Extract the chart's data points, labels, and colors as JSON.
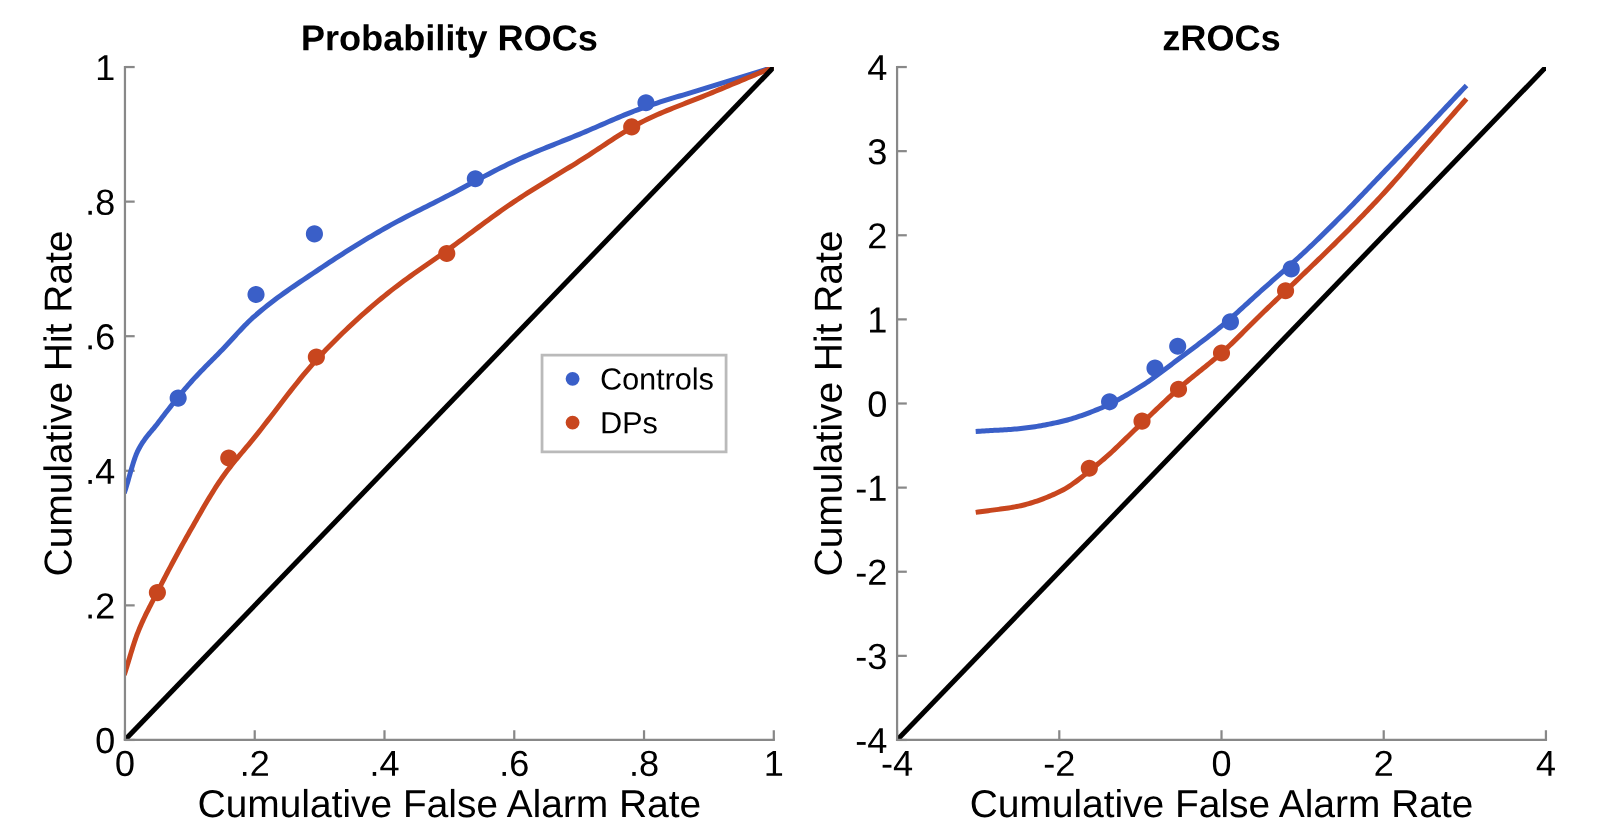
{
  "chart_data": [
    {
      "type": "scatter",
      "title": "Probability ROCs",
      "xlabel": "Cumulative False Alarm Rate",
      "ylabel": "Cumulative Hit Rate",
      "xlim": [
        0,
        1
      ],
      "ylim": [
        0,
        1
      ],
      "xticks": [
        0,
        {
          "value": 0.2,
          "label": ".2"
        },
        {
          "value": 0.4,
          "label": ".4"
        },
        {
          "value": 0.6,
          "label": ".6"
        },
        {
          "value": 0.8,
          "label": ".8"
        },
        1
      ],
      "yticks": [
        0,
        {
          "value": 0.2,
          "label": ".2"
        },
        {
          "value": 0.4,
          "label": ".4"
        },
        {
          "value": 0.6,
          "label": ".6"
        },
        {
          "value": 0.8,
          "label": ".8"
        },
        1
      ],
      "grid": false,
      "legend": "right",
      "series": [
        {
          "name": "Controls",
          "color": "#3a5fc8",
          "marker": "circle",
          "x": [
            0.082,
            0.202,
            0.292,
            0.54,
            0.803
          ],
          "values": [
            0.508,
            0.662,
            0.752,
            0.834,
            0.947
          ]
        },
        {
          "name": "DPs",
          "color": "#c8461e",
          "marker": "circle",
          "x": [
            0.05,
            0.16,
            0.295,
            0.496,
            0.781
          ],
          "values": [
            0.219,
            0.419,
            0.569,
            0.723,
            0.911
          ]
        },
        {
          "type": "line",
          "color": "#3a5fc8",
          "x": [
            0,
            0.02,
            0.05,
            0.1,
            0.15,
            0.2,
            0.3,
            0.4,
            0.5,
            0.6,
            0.7,
            0.8,
            0.9,
            1
          ],
          "values": [
            0.37,
            0.43,
            0.47,
            0.53,
            0.58,
            0.63,
            0.7,
            0.76,
            0.81,
            0.86,
            0.9,
            0.94,
            0.97,
            1
          ]
        },
        {
          "type": "line",
          "color": "#c8461e",
          "x": [
            0,
            0.02,
            0.05,
            0.1,
            0.15,
            0.2,
            0.3,
            0.4,
            0.5,
            0.6,
            0.7,
            0.8,
            0.9,
            1
          ],
          "values": [
            0.1,
            0.16,
            0.22,
            0.31,
            0.39,
            0.45,
            0.57,
            0.66,
            0.73,
            0.8,
            0.86,
            0.92,
            0.96,
            1
          ]
        },
        {
          "type": "line",
          "color": "#000000",
          "x": [
            0,
            1
          ],
          "values": [
            0,
            1
          ]
        }
      ]
    },
    {
      "type": "scatter",
      "title": "zROCs",
      "xlabel": "Cumulative False Alarm Rate",
      "ylabel": "Cumulative Hit Rate",
      "xlim": [
        -4,
        4
      ],
      "ylim": [
        -4,
        4
      ],
      "xticks": [
        -4,
        -2,
        0,
        2,
        4
      ],
      "yticks": [
        -4,
        -3,
        -2,
        -1,
        0,
        1,
        2,
        3,
        4
      ],
      "grid": false,
      "series": [
        {
          "color": "#3a5fc8",
          "marker": "circle",
          "x": [
            -1.38,
            -0.82,
            -0.54,
            0.11,
            0.86
          ],
          "values": [
            0.02,
            0.42,
            0.68,
            0.97,
            1.6
          ]
        },
        {
          "color": "#c8461e",
          "marker": "circle",
          "x": [
            -1.63,
            -0.98,
            -0.53,
            0,
            0.79
          ],
          "values": [
            -0.77,
            -0.21,
            0.17,
            0.6,
            1.34
          ]
        },
        {
          "type": "line",
          "color": "#3a5fc8",
          "x": [
            -3,
            -2.5,
            -2,
            -1.5,
            -1,
            -0.5,
            0,
            0.5,
            1,
            1.5,
            2,
            2.5,
            3
          ],
          "values": [
            -0.33,
            -0.3,
            -0.22,
            -0.06,
            0.2,
            0.55,
            0.92,
            1.35,
            1.78,
            2.25,
            2.75,
            3.25,
            3.76
          ]
        },
        {
          "type": "line",
          "color": "#c8461e",
          "x": [
            -3,
            -2.5,
            -2,
            -1.5,
            -1,
            -0.5,
            0,
            0.5,
            1,
            1.5,
            2,
            2.5,
            3
          ],
          "values": [
            -1.29,
            -1.22,
            -1.05,
            -0.7,
            -0.25,
            0.2,
            0.6,
            1.07,
            1.53,
            2.0,
            2.5,
            3.05,
            3.6
          ]
        },
        {
          "type": "line",
          "color": "#000000",
          "x": [
            -4,
            4
          ],
          "values": [
            -4,
            4
          ]
        }
      ]
    }
  ]
}
